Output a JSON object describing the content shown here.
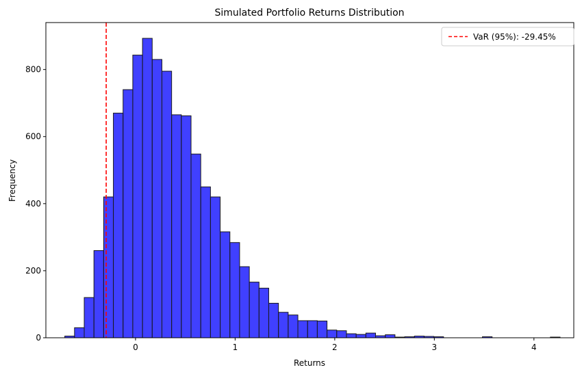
{
  "chart_data": {
    "type": "bar",
    "title": "Simulated Portfolio Returns Distribution",
    "xlabel": "Returns",
    "ylabel": "Frequency",
    "xlim": [
      -0.9,
      4.4
    ],
    "ylim": [
      0,
      940
    ],
    "xticks": [
      0,
      1,
      2,
      3,
      4
    ],
    "yticks": [
      0,
      200,
      400,
      600,
      800
    ],
    "grid": false,
    "bar_color": "#0000ff",
    "bar_edge_color": "#1a1a1a",
    "bar_alpha": 0.75,
    "bin_start": -0.71,
    "bin_width": 0.0975,
    "values": [
      5,
      30,
      120,
      260,
      420,
      670,
      740,
      843,
      893,
      830,
      795,
      665,
      662,
      548,
      450,
      420,
      316,
      284,
      212,
      166,
      148,
      103,
      76,
      68,
      51,
      51,
      50,
      23,
      21,
      12,
      10,
      14,
      6,
      9,
      2,
      3,
      5,
      4,
      3,
      0,
      0,
      0,
      0,
      3,
      0,
      0,
      0,
      0,
      0,
      0,
      2
    ],
    "var_line": {
      "x": -0.2945,
      "color": "#ff0000",
      "style": "dashed",
      "label": "VaR (95%): -29.45%"
    },
    "legend_position": "top-right"
  }
}
